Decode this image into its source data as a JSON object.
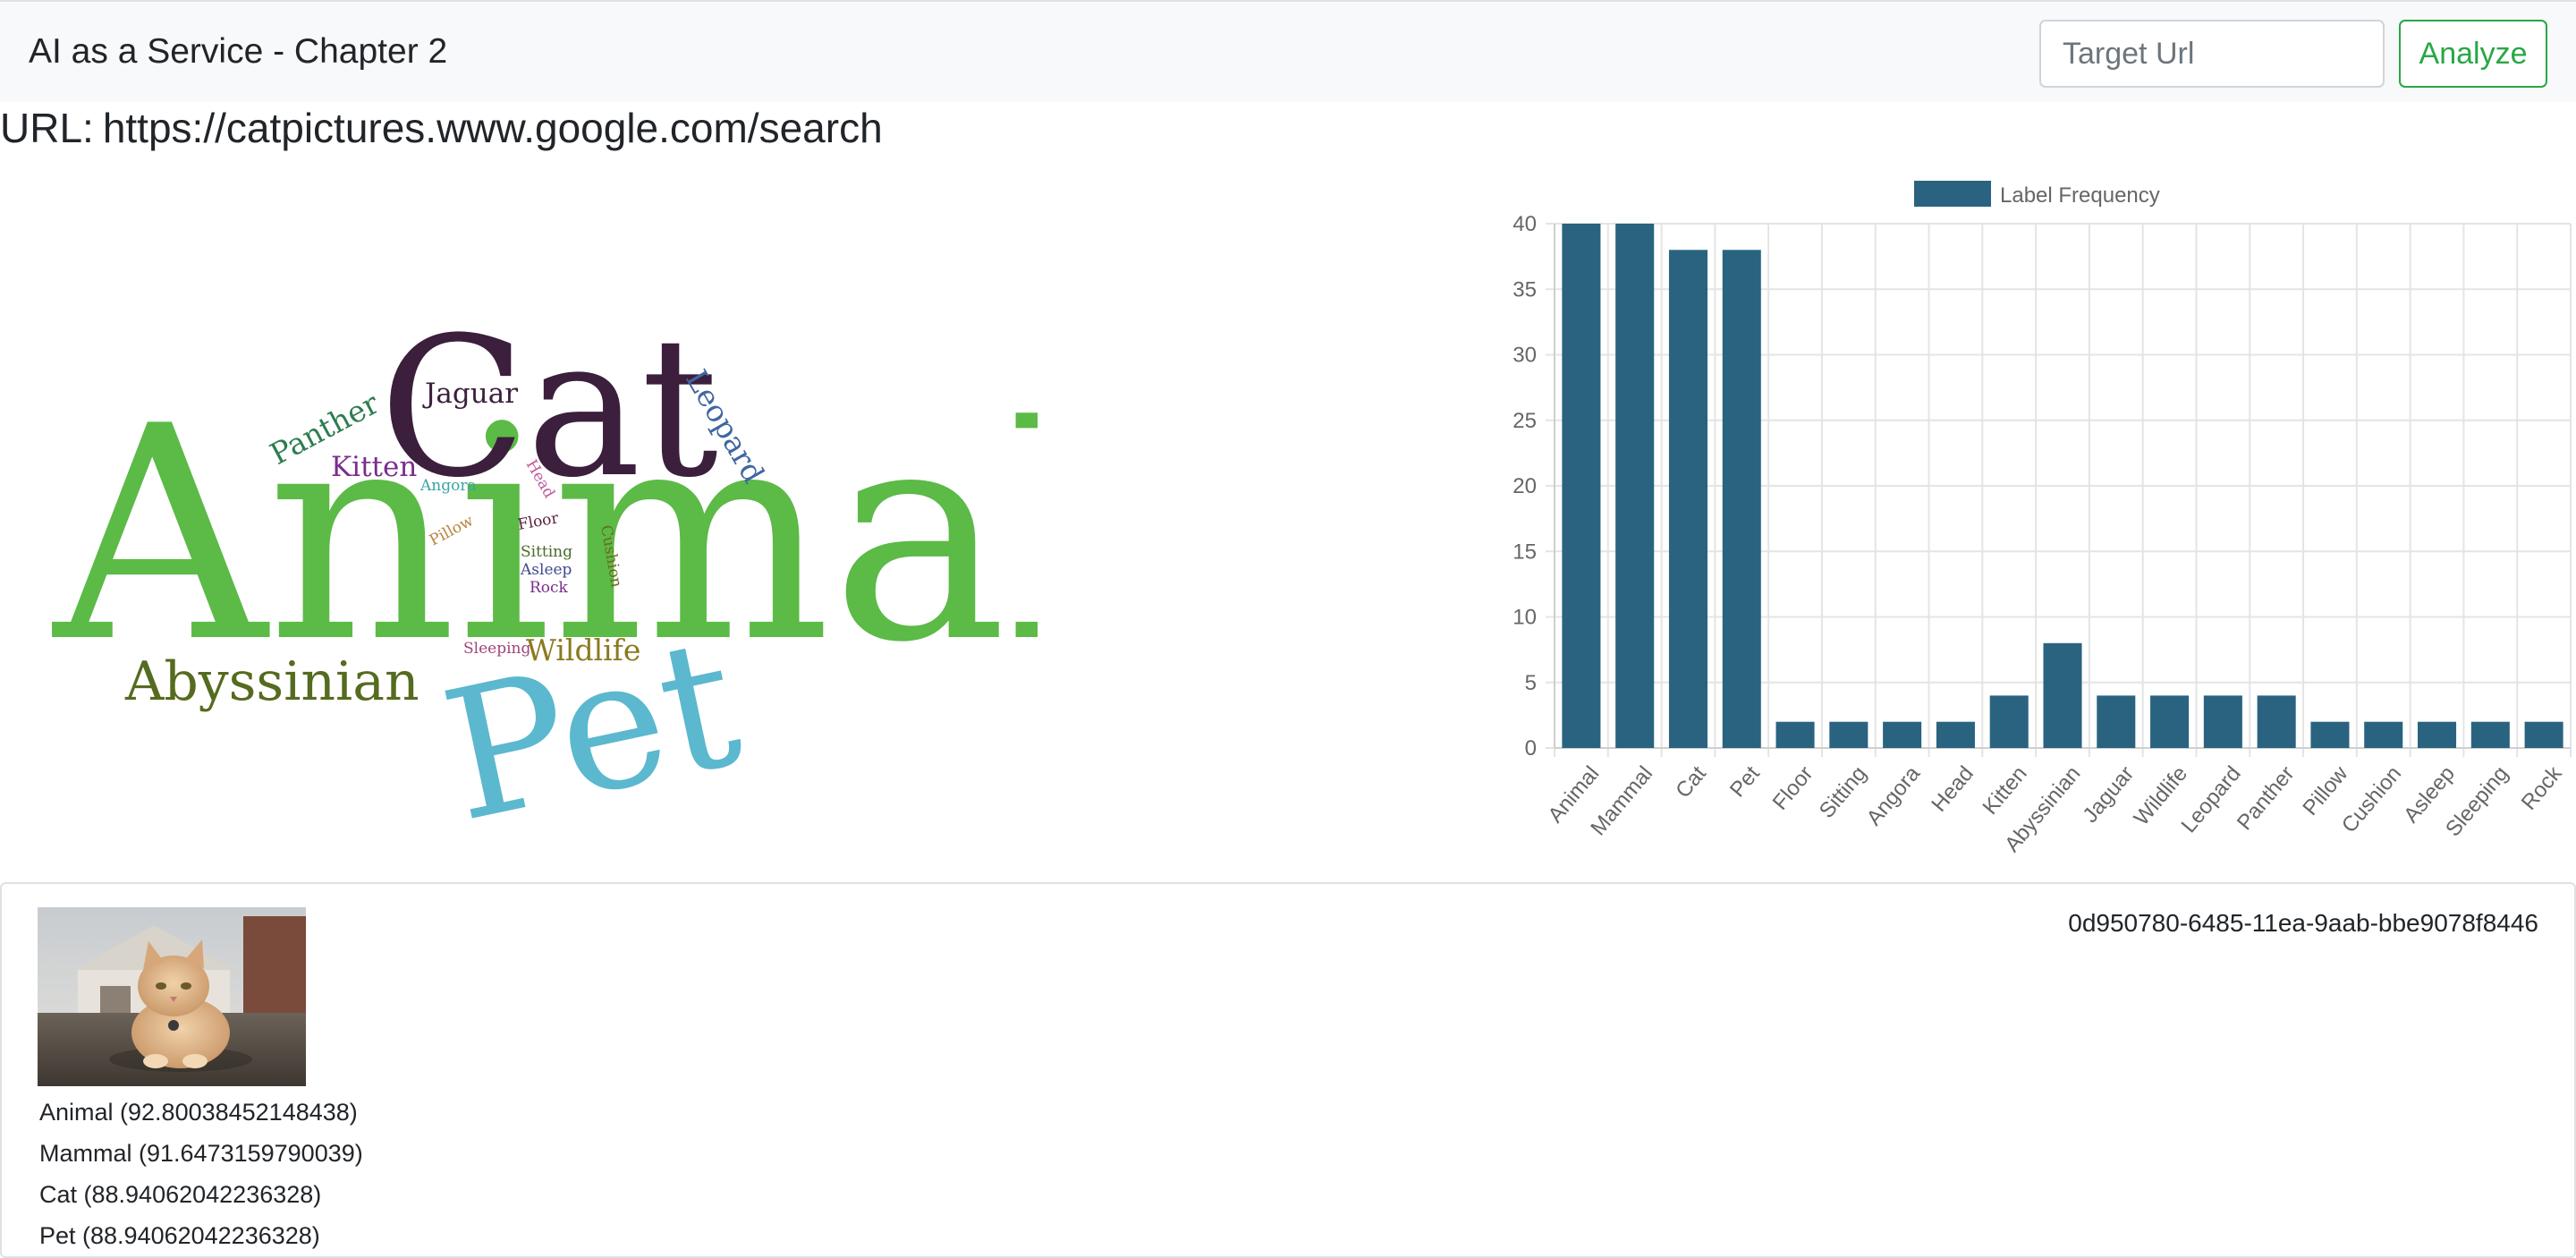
{
  "navbar": {
    "brand": "AI as a Service - Chapter 2",
    "target_url_placeholder": "Target Url",
    "analyze_label": "Analyze"
  },
  "page": {
    "url_prefix": "URL:",
    "url_value": "https://catpictures.www.google.com/search"
  },
  "word_cloud": {
    "words": [
      {
        "text": "Animal",
        "color": "#5cba47"
      },
      {
        "text": "Cat",
        "color": "#3b1f3d"
      },
      {
        "text": "Pet",
        "color": "#5bb8cf"
      },
      {
        "text": "Abyssinian",
        "color": "#556b1f"
      },
      {
        "text": "Jaguar",
        "color": "#3b1f3d"
      },
      {
        "text": "Leopard",
        "color": "#3f66a1"
      },
      {
        "text": "Panther",
        "color": "#2e7d4f"
      },
      {
        "text": "Kitten",
        "color": "#7a2d8c"
      },
      {
        "text": "Angora",
        "color": "#3aa6a6"
      },
      {
        "text": "Head",
        "color": "#c0569c"
      },
      {
        "text": "Pillow",
        "color": "#b8823a"
      },
      {
        "text": "Floor",
        "color": "#5a1f3d"
      },
      {
        "text": "Sitting",
        "color": "#4c6a2a"
      },
      {
        "text": "Asleep",
        "color": "#3f4a8c"
      },
      {
        "text": "Rock",
        "color": "#7a2d8c"
      },
      {
        "text": "Cushion",
        "color": "#6b6b1f"
      },
      {
        "text": "Sleeping",
        "color": "#a0447a"
      },
      {
        "text": "Wildlife",
        "color": "#8a7a1f"
      }
    ]
  },
  "chart_data": {
    "type": "bar",
    "legend": "Label Frequency",
    "legend_position": "top",
    "color": "#2a6380",
    "grid": true,
    "categories": [
      "Animal",
      "Mammal",
      "Cat",
      "Pet",
      "Floor",
      "Sitting",
      "Angora",
      "Head",
      "Kitten",
      "Abyssinian",
      "Jaguar",
      "Wildlife",
      "Leopard",
      "Panther",
      "Pillow",
      "Cushion",
      "Asleep",
      "Sleeping",
      "Rock"
    ],
    "values": [
      40,
      40,
      38,
      38,
      2,
      2,
      2,
      2,
      4,
      8,
      4,
      4,
      4,
      4,
      2,
      2,
      2,
      2,
      2
    ],
    "ylim": [
      0,
      40
    ],
    "yticks": [
      0,
      5,
      10,
      15,
      20,
      25,
      30,
      35,
      40
    ]
  },
  "result": {
    "id": "0d950780-6485-11ea-9aab-bbe9078f8446",
    "labels": [
      "Animal (92.80038452148438)",
      "Mammal (91.6473159790039)",
      "Cat (88.94062042236328)",
      "Pet (88.94062042236328)"
    ]
  }
}
